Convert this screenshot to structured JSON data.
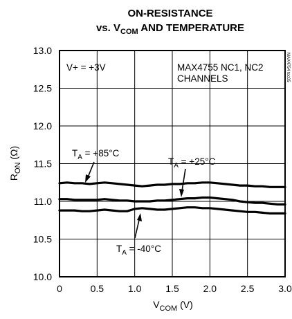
{
  "chart_data": {
    "type": "line",
    "title_line1": "ON-RESISTANCE",
    "title_line2": {
      "prefix": "vs. V",
      "sub": "COM",
      "suffix": " AND TEMPERATURE"
    },
    "xlabel": {
      "main": "V",
      "sub": "COM",
      "suffix": " (V)"
    },
    "ylabel": {
      "main": "R",
      "sub": "ON",
      "suffix": " (Ω)"
    },
    "xlim": [
      0,
      3.0
    ],
    "ylim": [
      10.0,
      13.0
    ],
    "x_ticks": [
      0,
      0.5,
      1.0,
      1.5,
      2.0,
      2.5,
      3.0
    ],
    "x_tick_labels": [
      "0",
      "0.5",
      "1.0",
      "1.5",
      "2.0",
      "2.5",
      "3.0"
    ],
    "y_ticks": [
      10.0,
      10.5,
      11.0,
      11.5,
      12.0,
      12.5,
      13.0
    ],
    "y_tick_labels": [
      "10.0",
      "10.5",
      "11.0",
      "11.5",
      "12.0",
      "12.5",
      "13.0"
    ],
    "grid": true,
    "annotations": {
      "supply": "V+ = +3V",
      "part_line1": "MAX4755 NC1, NC2",
      "part_line2": "CHANNELS",
      "watermark": "MAX4754 toc05"
    },
    "series": [
      {
        "name": "TA = +85°C",
        "label": {
          "main": "T",
          "sub": "A",
          "suffix": " = +85°C"
        },
        "x": [
          0,
          0.1,
          0.2,
          0.3,
          0.4,
          0.5,
          0.6,
          0.7,
          0.8,
          0.9,
          1.0,
          1.1,
          1.2,
          1.3,
          1.4,
          1.5,
          1.6,
          1.7,
          1.8,
          1.9,
          2.0,
          2.1,
          2.2,
          2.3,
          2.4,
          2.5,
          2.6,
          2.7,
          2.8,
          2.9,
          3.0
        ],
        "y": [
          11.24,
          11.25,
          11.24,
          11.24,
          11.23,
          11.24,
          11.25,
          11.24,
          11.23,
          11.22,
          11.21,
          11.2,
          11.21,
          11.22,
          11.22,
          11.23,
          11.23,
          11.24,
          11.24,
          11.25,
          11.25,
          11.24,
          11.23,
          11.22,
          11.21,
          11.21,
          11.2,
          11.2,
          11.19,
          11.19,
          11.19
        ]
      },
      {
        "name": "TA = +25°C",
        "label": {
          "main": "T",
          "sub": "A",
          "suffix": " = +25°C"
        },
        "x": [
          0,
          0.1,
          0.2,
          0.3,
          0.4,
          0.5,
          0.6,
          0.7,
          0.8,
          0.9,
          1.0,
          1.1,
          1.2,
          1.3,
          1.4,
          1.5,
          1.6,
          1.7,
          1.8,
          1.9,
          2.0,
          2.1,
          2.2,
          2.3,
          2.4,
          2.5,
          2.6,
          2.7,
          2.8,
          2.9,
          3.0
        ],
        "y": [
          11.03,
          11.03,
          11.02,
          11.02,
          11.02,
          11.02,
          11.03,
          11.02,
          11.01,
          11.01,
          11.0,
          11.0,
          11.0,
          11.01,
          11.01,
          11.02,
          11.03,
          11.04,
          11.04,
          11.05,
          11.05,
          11.04,
          11.03,
          11.02,
          11.0,
          10.99,
          10.98,
          10.98,
          10.97,
          10.96,
          10.96
        ]
      },
      {
        "name": "TA = -40°C",
        "label": {
          "main": "T",
          "sub": "A",
          "suffix": " = -40°C"
        },
        "x": [
          0,
          0.1,
          0.2,
          0.3,
          0.4,
          0.5,
          0.6,
          0.7,
          0.8,
          0.9,
          1.0,
          1.1,
          1.2,
          1.3,
          1.4,
          1.5,
          1.6,
          1.7,
          1.8,
          1.9,
          2.0,
          2.1,
          2.2,
          2.3,
          2.4,
          2.5,
          2.6,
          2.7,
          2.8,
          2.9,
          3.0
        ],
        "y": [
          10.88,
          10.88,
          10.88,
          10.87,
          10.87,
          10.88,
          10.89,
          10.88,
          10.87,
          10.87,
          10.9,
          10.91,
          10.9,
          10.89,
          10.89,
          10.9,
          10.91,
          10.92,
          10.92,
          10.91,
          10.91,
          10.9,
          10.89,
          10.88,
          10.87,
          10.86,
          10.86,
          10.85,
          10.84,
          10.84,
          10.84
        ]
      }
    ]
  }
}
